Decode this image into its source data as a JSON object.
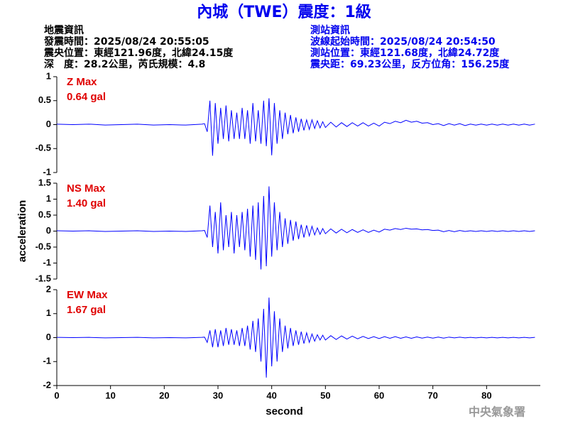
{
  "header": {
    "title": "內城（TWE）震度：1級",
    "left": [
      "地震資訊",
      "發震時間：2025/08/24 20:55:05",
      "震央位置：東經121.96度，北緯24.15度",
      "深　度：28.2公里，芮氏規模：4.8"
    ],
    "right": [
      "測站資訊",
      "波線起始時間：2025/08/24 20:54:50",
      "測站位置：東經121.68度，北緯24.72度",
      "震央距：69.23公里，反方位角：156.25度"
    ]
  },
  "footer": "中央氣象署",
  "chart_data": [
    {
      "type": "line",
      "color": "#0000ff",
      "annotations": [
        "Z Max",
        "0.64 gal"
      ],
      "xlim": [
        0,
        90
      ],
      "ylim": [
        -1,
        1
      ],
      "yticks": [
        -1,
        -0.5,
        0,
        0.5,
        1
      ],
      "x": [
        0,
        3,
        6,
        9,
        12,
        15,
        18,
        21,
        24,
        27,
        27.5,
        28,
        28.5,
        29,
        29.5,
        30,
        30.5,
        31,
        31.5,
        32,
        32.5,
        33,
        33.5,
        34,
        34.5,
        35,
        35.5,
        36,
        36.5,
        37,
        37.5,
        38,
        38.5,
        39,
        39.5,
        40,
        40.5,
        41,
        41.5,
        42,
        42.5,
        43,
        43.5,
        44,
        44.5,
        45,
        45.5,
        46,
        46.5,
        47,
        47.5,
        48,
        48.5,
        49,
        49.5,
        50,
        51,
        52,
        53,
        54,
        55,
        56,
        57,
        58,
        59,
        60,
        61,
        62,
        63,
        64,
        65,
        66,
        67,
        68,
        69,
        70,
        71,
        72,
        73,
        74,
        75,
        76,
        77,
        78,
        79,
        80,
        81,
        82,
        83,
        84,
        85,
        86,
        87,
        88,
        89
      ],
      "values": [
        0.01,
        0,
        0.01,
        -0.01,
        0,
        0.01,
        -0.01,
        0,
        -0.01,
        0.01,
        0.02,
        -0.15,
        0.5,
        -0.65,
        0.45,
        -0.4,
        0.35,
        -0.3,
        0.4,
        -0.35,
        0.3,
        -0.3,
        0.25,
        -0.3,
        0.35,
        -0.3,
        0.3,
        -0.4,
        0.45,
        -0.35,
        0.3,
        -0.4,
        0.5,
        -0.45,
        0.55,
        -0.64,
        0.45,
        -0.4,
        0.3,
        -0.3,
        0.25,
        -0.2,
        0.2,
        -0.18,
        0.15,
        -0.15,
        0.12,
        -0.12,
        0.1,
        -0.1,
        0.1,
        -0.08,
        0.08,
        -0.07,
        0.06,
        -0.06,
        0.05,
        -0.05,
        0.04,
        -0.04,
        0.04,
        -0.03,
        0.04,
        -0.03,
        0.03,
        -0.03,
        0.05,
        0.02,
        0.07,
        0.04,
        0.09,
        0.05,
        0.07,
        0.03,
        0.04,
        0,
        0.02,
        -0.02,
        0.02,
        -0.01,
        0.02,
        -0.02,
        0.01,
        -0.01,
        0.01,
        -0.01,
        0.01,
        -0.01,
        0.01,
        -0.01,
        0.01,
        -0.01,
        0.01,
        -0.01,
        0.01
      ]
    },
    {
      "type": "line",
      "color": "#0000ff",
      "annotations": [
        "NS Max",
        "1.40 gal"
      ],
      "ylabel": "acceleration",
      "xlim": [
        0,
        90
      ],
      "ylim": [
        -1.5,
        1.5
      ],
      "yticks": [
        -1.5,
        -1,
        -0.5,
        0,
        0.5,
        1,
        1.5
      ],
      "x": [
        0,
        3,
        6,
        9,
        12,
        15,
        18,
        21,
        24,
        27,
        27.5,
        28,
        28.5,
        29,
        29.5,
        30,
        30.5,
        31,
        31.5,
        32,
        32.5,
        33,
        33.5,
        34,
        34.5,
        35,
        35.5,
        36,
        36.5,
        37,
        37.5,
        38,
        38.5,
        39,
        39.5,
        40,
        40.5,
        41,
        41.5,
        42,
        42.5,
        43,
        43.5,
        44,
        44.5,
        45,
        45.5,
        46,
        46.5,
        47,
        47.5,
        48,
        48.5,
        49,
        49.5,
        50,
        51,
        52,
        53,
        54,
        55,
        56,
        57,
        58,
        59,
        60,
        61,
        62,
        63,
        64,
        65,
        66,
        67,
        68,
        69,
        70,
        71,
        72,
        73,
        74,
        75,
        76,
        77,
        78,
        79,
        80,
        81,
        82,
        83,
        84,
        85,
        86,
        87,
        88,
        89
      ],
      "values": [
        0.01,
        0,
        0.01,
        -0.01,
        0,
        0.01,
        -0.01,
        0,
        -0.01,
        0.01,
        0.02,
        -0.2,
        0.8,
        -0.5,
        0.6,
        -0.7,
        0.9,
        -0.6,
        0.5,
        -0.5,
        0.6,
        -0.7,
        0.5,
        -0.5,
        0.6,
        -0.6,
        0.7,
        -0.8,
        0.8,
        -0.9,
        0.9,
        -1.2,
        1.1,
        -1.1,
        1.4,
        -0.8,
        0.9,
        -0.6,
        0.6,
        -0.5,
        0.4,
        -0.4,
        0.35,
        -0.3,
        0.3,
        -0.25,
        0.2,
        -0.2,
        0.18,
        -0.15,
        0.15,
        -0.12,
        0.1,
        -0.1,
        0.08,
        -0.08,
        0.07,
        -0.06,
        0.06,
        -0.05,
        0.05,
        -0.04,
        0.04,
        -0.04,
        0.03,
        -0.03,
        0.06,
        0.03,
        0.08,
        0.05,
        0.09,
        0.06,
        0.07,
        0.04,
        0.05,
        0.02,
        0.03,
        -0.02,
        0.02,
        -0.02,
        0.02,
        -0.01,
        0.01,
        -0.01,
        0.01,
        -0.01,
        0.01,
        -0.01,
        0.01,
        -0.01,
        0.01,
        -0.01,
        0.01,
        -0.01,
        0.01
      ]
    },
    {
      "type": "line",
      "color": "#0000ff",
      "annotations": [
        "EW Max",
        "1.67 gal"
      ],
      "xlabel": "second",
      "xlim": [
        0,
        90
      ],
      "xticks": [
        0,
        10,
        20,
        30,
        40,
        50,
        60,
        70,
        80
      ],
      "ylim": [
        -2,
        2
      ],
      "yticks": [
        -2,
        -1,
        0,
        1,
        2
      ],
      "x": [
        0,
        3,
        6,
        9,
        12,
        15,
        18,
        21,
        24,
        27,
        27.5,
        28,
        28.5,
        29,
        29.5,
        30,
        30.5,
        31,
        31.5,
        32,
        32.5,
        33,
        33.5,
        34,
        34.5,
        35,
        35.5,
        36,
        36.5,
        37,
        37.5,
        38,
        38.5,
        39,
        39.5,
        40,
        40.5,
        41,
        41.5,
        42,
        42.5,
        43,
        43.5,
        44,
        44.5,
        45,
        45.5,
        46,
        46.5,
        47,
        47.5,
        48,
        48.5,
        49,
        49.5,
        50,
        51,
        52,
        53,
        54,
        55,
        56,
        57,
        58,
        59,
        60,
        61,
        62,
        63,
        64,
        65,
        66,
        67,
        68,
        69,
        70,
        71,
        72,
        73,
        74,
        75,
        76,
        77,
        78,
        79,
        80,
        81,
        82,
        83,
        84,
        85,
        86,
        87,
        88,
        89
      ],
      "values": [
        0.01,
        0,
        0.01,
        -0.01,
        0,
        0.01,
        -0.01,
        0,
        -0.01,
        0.01,
        0.02,
        -0.2,
        0.3,
        -0.4,
        0.35,
        -0.4,
        0.3,
        -0.35,
        0.4,
        -0.3,
        0.35,
        -0.3,
        0.3,
        -0.35,
        0.4,
        -0.35,
        0.5,
        -0.5,
        0.7,
        -0.6,
        0.8,
        -1.0,
        1.2,
        -1.67,
        1.67,
        -1.2,
        1.1,
        -1.0,
        0.8,
        -0.6,
        0.5,
        -0.45,
        0.4,
        -0.35,
        0.3,
        -0.3,
        0.25,
        -0.25,
        0.2,
        -0.2,
        0.15,
        -0.15,
        0.12,
        -0.1,
        0.1,
        -0.1,
        0.08,
        -0.08,
        0.07,
        -0.06,
        0.06,
        -0.05,
        0.05,
        -0.04,
        0.04,
        -0.04,
        0.04,
        -0.03,
        0.04,
        -0.03,
        0.03,
        -0.03,
        0.03,
        -0.02,
        0.02,
        -0.02,
        0.02,
        -0.02,
        0.02,
        -0.01,
        0.02,
        -0.01,
        0.01,
        -0.01,
        0.01,
        -0.01,
        0.01,
        -0.01,
        0.01,
        -0.01,
        0.01,
        -0.01,
        0.01,
        -0.01,
        0.01
      ]
    }
  ]
}
